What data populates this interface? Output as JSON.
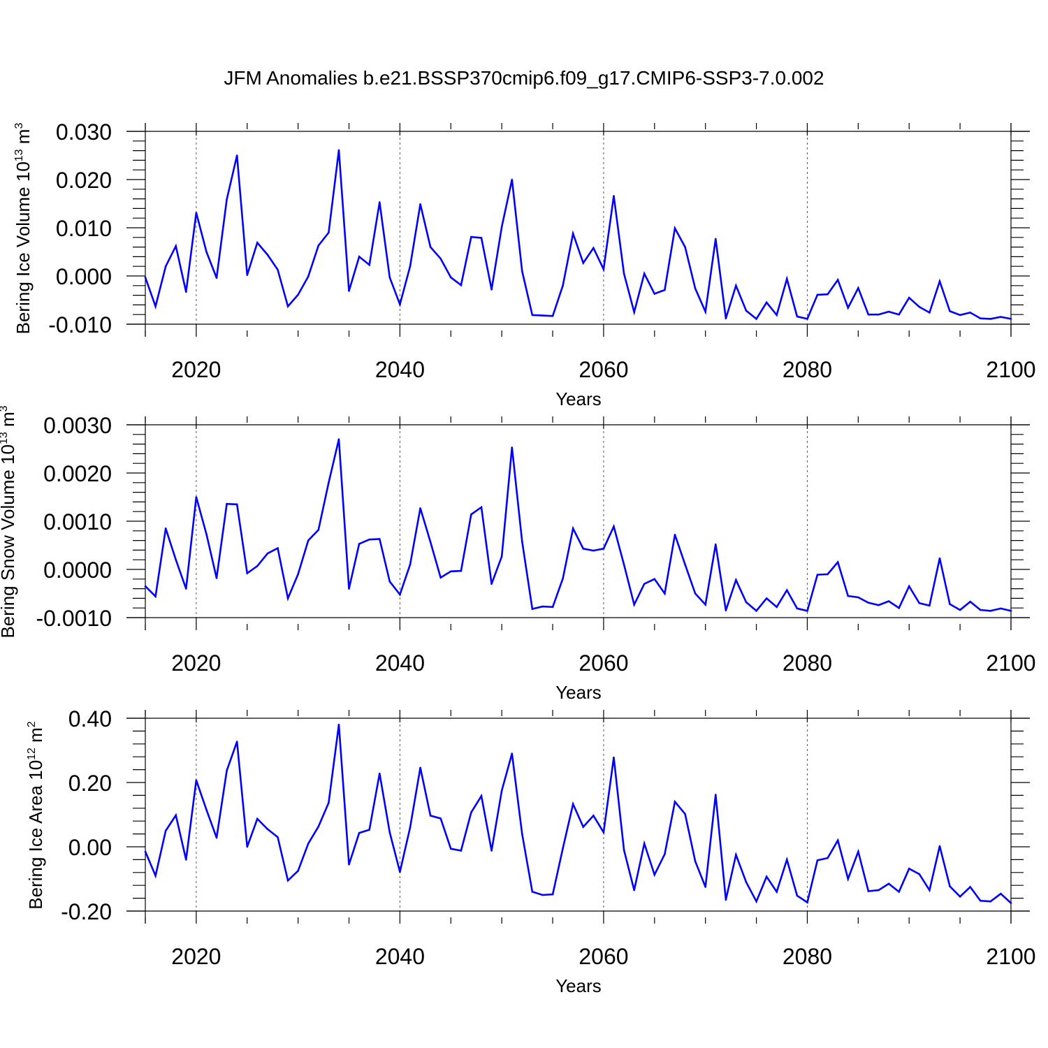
{
  "title": "JFM Anomalies b.e21.BSSP370cmip6.f09_g17.CMIP6-SSP3-7.0.002",
  "colors": {
    "series": "#0000ff",
    "axis": "#000000",
    "gridline": "#555555"
  },
  "chart_data": [
    {
      "type": "line",
      "title": "JFM Anomalies b.e21.BSSP370cmip6.f09_g17.CMIP6-SSP3-7.0.002",
      "ylabel": {
        "text": "Bering Ice Volume 10",
        "sup": "13",
        "unit": "m",
        "unit_sup": "3"
      },
      "xlabel": "Years",
      "xlim": [
        2015,
        2100
      ],
      "ylim": [
        -0.01,
        0.03
      ],
      "yticks": [
        -0.01,
        0.0,
        0.01,
        0.02,
        0.03
      ],
      "yticklabels": [
        "-0.010",
        "0.000",
        "0.010",
        "0.020",
        "0.030"
      ],
      "xticks": [
        2020,
        2040,
        2060,
        2080,
        2100
      ],
      "xticklabels": [
        "2020",
        "2040",
        "2060",
        "2080",
        "2100"
      ],
      "vgrid": [
        2020,
        2040,
        2060,
        2080
      ],
      "x_start": 2015,
      "values": [
        -0.0003,
        -0.0063,
        0.002,
        0.0062,
        -0.0033,
        0.0131,
        0.005,
        -0.0004,
        0.0159,
        0.025,
        0.0002,
        0.0069,
        0.0044,
        0.0013,
        -0.0063,
        -0.0039,
        -0.0001,
        0.0063,
        0.009,
        0.0261,
        -0.0031,
        0.004,
        0.0023,
        0.0153,
        -0.0003,
        -0.0059,
        0.002,
        0.0149,
        0.006,
        0.0036,
        -0.0003,
        -0.0019,
        0.0081,
        0.0079,
        -0.0028,
        0.0102,
        0.02,
        0.001,
        -0.0081,
        -0.0082,
        -0.0083,
        -0.002,
        0.0088,
        0.0027,
        0.0058,
        0.0014,
        0.0166,
        0.0005,
        -0.0075,
        0.0005,
        -0.0037,
        -0.0029,
        0.0099,
        0.006,
        -0.0026,
        -0.0074,
        0.0077,
        -0.0088,
        -0.002,
        -0.0072,
        -0.0089,
        -0.0055,
        -0.0081,
        -0.0006,
        -0.0084,
        -0.0089,
        -0.0039,
        -0.0038,
        -0.0008,
        -0.0066,
        -0.0025,
        -0.008,
        -0.008,
        -0.0074,
        -0.008,
        -0.0045,
        -0.0064,
        -0.0076,
        -0.0011,
        -0.0073,
        -0.0081,
        -0.0076,
        -0.0088,
        -0.0089,
        -0.0085,
        -0.0089
      ]
    },
    {
      "type": "line",
      "ylabel": {
        "text": "Bering Snow Volume 10",
        "sup": "13",
        "unit": "m",
        "unit_sup": "3"
      },
      "xlabel": "Years",
      "xlim": [
        2015,
        2100
      ],
      "ylim": [
        -0.001,
        0.003
      ],
      "yticks": [
        -0.001,
        0.0,
        0.001,
        0.002,
        0.003
      ],
      "yticklabels": [
        "-0.0010",
        "0.0000",
        "0.0010",
        "0.0020",
        "0.0030"
      ],
      "xticks": [
        2020,
        2040,
        2060,
        2080,
        2100
      ],
      "xticklabels": [
        "2020",
        "2040",
        "2060",
        "2080",
        "2100"
      ],
      "vgrid": [
        2020,
        2040,
        2060,
        2080
      ],
      "x_start": 2015,
      "values": [
        -0.00035,
        -0.00056,
        0.00085,
        0.0002,
        -0.0004,
        0.0015,
        0.00073,
        -0.00018,
        0.00136,
        0.00135,
        -8e-05,
        7e-05,
        0.00033,
        0.00044,
        -0.0006,
        -0.0001,
        0.0006,
        0.00082,
        0.0018,
        0.0027,
        -0.0004,
        0.00053,
        0.00062,
        0.00063,
        -0.00025,
        -0.00052,
        0.0001,
        0.00127,
        0.00057,
        -0.00017,
        -4e-05,
        -3e-05,
        0.00114,
        0.00129,
        -0.0003,
        0.00027,
        0.00253,
        0.00058,
        -0.00082,
        -0.00077,
        -0.00078,
        -0.00019,
        0.00085,
        0.00043,
        0.00039,
        0.00043,
        0.00089,
        0.0001,
        -0.00073,
        -0.0003,
        -0.0002,
        -0.0005,
        0.00072,
        0.0001,
        -0.0005,
        -0.00073,
        0.00052,
        -0.00085,
        -0.00022,
        -0.00068,
        -0.00086,
        -0.0006,
        -0.00078,
        -0.00043,
        -0.00081,
        -0.00086,
        -0.00011,
        -0.0001,
        0.00015,
        -0.00055,
        -0.00058,
        -0.00069,
        -0.00074,
        -0.00066,
        -0.0008,
        -0.00035,
        -0.0007,
        -0.00075,
        0.00023,
        -0.00072,
        -0.00084,
        -0.00067,
        -0.00084,
        -0.00086,
        -0.00081,
        -0.00086
      ]
    },
    {
      "type": "line",
      "ylabel": {
        "text": "Bering Ice Area 10",
        "sup": "12",
        "unit": "m",
        "unit_sup": "2"
      },
      "xlabel": "Years",
      "xlim": [
        2015,
        2100
      ],
      "ylim": [
        -0.2,
        0.4
      ],
      "yticks": [
        -0.2,
        0.0,
        0.2,
        0.4
      ],
      "yticklabels": [
        "-0.20",
        "0.00",
        "0.20",
        "0.40"
      ],
      "xticks": [
        2020,
        2040,
        2060,
        2080,
        2100
      ],
      "xticklabels": [
        "2020",
        "2040",
        "2060",
        "2080",
        "2100"
      ],
      "vgrid": [
        2020,
        2040,
        2060,
        2080
      ],
      "x_start": 2015,
      "values": [
        -0.015,
        -0.09,
        0.05,
        0.098,
        -0.04,
        0.207,
        0.115,
        0.028,
        0.237,
        0.327,
        0.0,
        0.087,
        0.055,
        0.03,
        -0.105,
        -0.075,
        0.01,
        0.063,
        0.137,
        0.38,
        -0.055,
        0.043,
        0.053,
        0.228,
        0.045,
        -0.078,
        0.06,
        0.246,
        0.097,
        0.088,
        -0.006,
        -0.012,
        0.107,
        0.158,
        -0.012,
        0.175,
        0.29,
        0.04,
        -0.14,
        -0.15,
        -0.148,
        -0.005,
        0.133,
        0.062,
        0.097,
        0.045,
        0.278,
        -0.01,
        -0.135,
        0.01,
        -0.087,
        -0.023,
        0.14,
        0.102,
        -0.045,
        -0.125,
        0.162,
        -0.165,
        -0.025,
        -0.11,
        -0.17,
        -0.093,
        -0.14,
        -0.04,
        -0.152,
        -0.173,
        -0.042,
        -0.035,
        0.02,
        -0.1,
        -0.015,
        -0.138,
        -0.135,
        -0.115,
        -0.14,
        -0.068,
        -0.085,
        -0.135,
        0.002,
        -0.123,
        -0.155,
        -0.125,
        -0.168,
        -0.17,
        -0.146,
        -0.175
      ]
    }
  ]
}
